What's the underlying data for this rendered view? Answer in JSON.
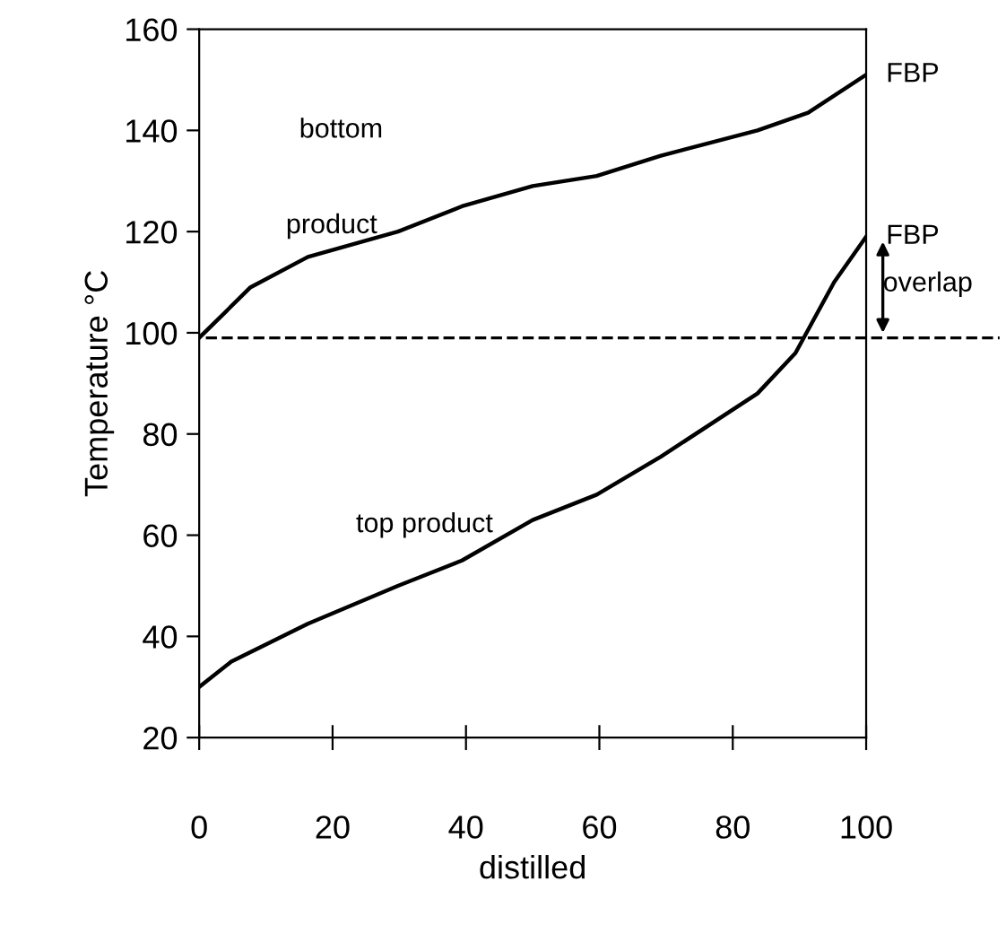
{
  "chart_data": {
    "type": "line",
    "xlabel": "distilled",
    "ylabel": "Temperature °C",
    "xlim": [
      0,
      100
    ],
    "ylim": [
      20,
      160
    ],
    "xticks": [
      0,
      20,
      40,
      60,
      80,
      100
    ],
    "yticks": [
      20,
      40,
      60,
      80,
      100,
      120,
      140,
      160
    ],
    "grid": false,
    "legend": false,
    "marker": "none",
    "line_style": "solid",
    "series": [
      {
        "color": "#000000",
        "x": [
          0,
          7.7,
          16.3,
          29.8,
          39.4,
          50,
          59.6,
          69.2,
          83.7,
          91.3,
          100
        ],
        "values": [
          99,
          109,
          115,
          120,
          125,
          129,
          131,
          135,
          140,
          143.5,
          151
        ]
      },
      {
        "color": "#000000",
        "x": [
          0,
          4.8,
          16.3,
          29.8,
          39.4,
          50,
          59.6,
          69.2,
          83.7,
          89.4,
          95.2,
          100
        ],
        "values": [
          30,
          35,
          42.5,
          50,
          55,
          63,
          68,
          75.5,
          88,
          96,
          110,
          119
        ]
      }
    ],
    "ref_lines": [
      {
        "axis": "y",
        "value": 99,
        "line_style": "dashed",
        "color": "#000000"
      }
    ],
    "annotations": [
      "bottom",
      "product",
      "top product",
      {
        "text": "FBP",
        "x": 100,
        "y": 151
      },
      {
        "text": "FBP",
        "x": 100,
        "y": 119
      },
      "overlap"
    ]
  }
}
